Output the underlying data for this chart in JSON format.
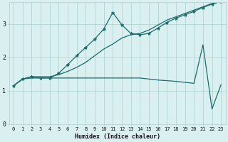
{
  "xlabel": "Humidex (Indice chaleur)",
  "xlim": [
    -0.5,
    23.5
  ],
  "ylim": [
    0,
    3.65
  ],
  "yticks": [
    0,
    1,
    2,
    3
  ],
  "xticks": [
    0,
    1,
    2,
    3,
    4,
    5,
    6,
    7,
    8,
    9,
    10,
    11,
    12,
    13,
    14,
    15,
    16,
    17,
    18,
    19,
    20,
    21,
    22,
    23
  ],
  "bg_color": "#daf0f0",
  "grid_color": "#b8d8d8",
  "line_color": "#1a6b6b",
  "line1_x": [
    0,
    1,
    2,
    3,
    4,
    5,
    6,
    7,
    8,
    9,
    10,
    11,
    12,
    13,
    14,
    15,
    16,
    17,
    18,
    19,
    20,
    21,
    22,
    23
  ],
  "line1_y": [
    1.15,
    1.35,
    1.42,
    1.42,
    1.42,
    1.48,
    1.58,
    1.7,
    1.85,
    2.05,
    2.25,
    2.4,
    2.58,
    2.68,
    2.72,
    2.82,
    2.97,
    3.12,
    3.22,
    3.32,
    3.42,
    3.52,
    3.62,
    3.68
  ],
  "line2_x": [
    0,
    1,
    2,
    3,
    4,
    5,
    6,
    7,
    8,
    9,
    10,
    11,
    12,
    13,
    14,
    15,
    16,
    17,
    18,
    19,
    20,
    21,
    22,
    23
  ],
  "line2_y": [
    1.15,
    1.35,
    1.42,
    1.38,
    1.38,
    1.52,
    1.78,
    2.05,
    2.3,
    2.55,
    2.85,
    3.35,
    2.98,
    2.72,
    2.68,
    2.72,
    2.88,
    3.05,
    3.18,
    3.28,
    3.38,
    3.5,
    3.6,
    3.68
  ],
  "line3_x": [
    0,
    1,
    2,
    3,
    4,
    5,
    6,
    7,
    8,
    9,
    10,
    11,
    12,
    13,
    14,
    15,
    16,
    17,
    18,
    19,
    20,
    21,
    22,
    23
  ],
  "line3_y": [
    1.15,
    1.35,
    1.38,
    1.38,
    1.38,
    1.38,
    1.38,
    1.38,
    1.38,
    1.38,
    1.38,
    1.38,
    1.38,
    1.38,
    1.38,
    1.35,
    1.32,
    1.3,
    1.28,
    1.25,
    1.22,
    2.38,
    0.45,
    1.18
  ],
  "marker": "*",
  "markersize": 3.5
}
